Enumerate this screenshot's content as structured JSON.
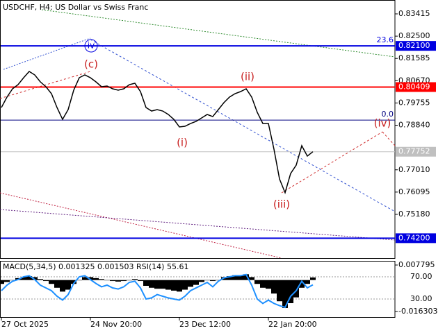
{
  "chart_data": [
    {
      "type": "line",
      "title": "USDCHF, H4:  US Dollar vs Swiss Franc",
      "color": "#000000",
      "categories": [
        "27 Oct 2025",
        null,
        null,
        null,
        null,
        null,
        null,
        null,
        null,
        null,
        null,
        null,
        null,
        null,
        null,
        null,
        "24 Nov 20:00",
        null,
        null,
        null,
        null,
        null,
        null,
        null,
        null,
        null,
        null,
        null,
        null,
        null,
        null,
        null,
        "23 Dec 12:00",
        null,
        null,
        null,
        null,
        null,
        null,
        null,
        null,
        null,
        null,
        null,
        null,
        null,
        null,
        null,
        "22 Jan 20:00",
        null,
        null,
        null,
        null,
        null,
        null,
        null,
        null
      ],
      "values": [
        0.79568,
        0.79995,
        0.80337,
        0.80508,
        0.80793,
        0.8105,
        0.80907,
        0.80622,
        0.80423,
        0.80138,
        0.79568,
        0.79083,
        0.79482,
        0.8028,
        0.80793,
        0.80907,
        0.80793,
        0.80622,
        0.80423,
        0.80451,
        0.80337,
        0.8028,
        0.80337,
        0.80508,
        0.80565,
        0.80223,
        0.79568,
        0.79425,
        0.79482,
        0.79425,
        0.79283,
        0.79083,
        0.7877,
        0.78798,
        0.78912,
        0.78998,
        0.7914,
        0.79283,
        0.79197,
        0.79482,
        0.79767,
        0.79995,
        0.80138,
        0.80223,
        0.80337,
        0.79995,
        0.79368,
        0.78912,
        0.78912,
        0.77858,
        0.76633,
        0.7607,
        0.7686,
        0.77202,
        0.78,
        0.77573,
        0.77752
      ],
      "ylim": [
        0.73384,
        0.83985
      ],
      "yticks": [
        {
          "value": 0.83415,
          "label": "0.83415"
        },
        {
          "value": 0.825,
          "label": "0.82500"
        },
        {
          "value": 0.81585,
          "label": "0.81585"
        },
        {
          "value": 0.8067,
          "label": "0.80670"
        },
        {
          "value": 0.79755,
          "label": "0.79755"
        },
        {
          "value": 0.7884,
          "label": "0.78840"
        },
        {
          "value": 0.7701,
          "label": "0.77010"
        },
        {
          "value": 0.76095,
          "label": "0.76095"
        },
        {
          "value": 0.7518,
          "label": "0.75180"
        }
      ],
      "levels": [
        {
          "value": 0.821,
          "label": "0.82100",
          "color": "#0000e0",
          "fib": "23.6"
        },
        {
          "value": 0.80409,
          "label": "0.80409",
          "color": "#ff0000"
        },
        {
          "value": 0.7905,
          "color": "#000080",
          "fib": "0.0"
        },
        {
          "value": 0.77752,
          "label": "0.77752",
          "color": "#c0c0c0"
        },
        {
          "value": 0.742,
          "label": "0.74200",
          "color": "#0000e0"
        }
      ],
      "annotations": [
        "iv",
        "(c)",
        "(ii)",
        "(i)",
        "(iii)",
        "(iv)"
      ]
    },
    {
      "type": "bar",
      "title": "MACD(5,34,5) 0.001325 0.001503 RSI(14) 55.61",
      "series": [
        {
          "color": "#000000",
          "values": [
            -0.002,
            -0.001,
            0.0,
            0.001,
            0.0015,
            0.002,
            0.0015,
            0.0005,
            -0.0005,
            -0.002,
            -0.004,
            -0.006,
            -0.005,
            -0.002,
            0.0,
            0.0015,
            0.0015,
            0.001,
            0.0005,
            0.0,
            -0.0005,
            -0.0008,
            -0.0005,
            0.0,
            0.0005,
            -0.0005,
            -0.003,
            -0.004,
            -0.0045,
            -0.0045,
            -0.005,
            -0.0055,
            -0.006,
            -0.005,
            -0.0035,
            -0.0025,
            -0.001,
            0.0,
            -0.0005,
            0.0,
            0.0015,
            0.002,
            0.0025,
            0.0025,
            0.003,
            0.0015,
            -0.002,
            -0.004,
            -0.0045,
            -0.007,
            -0.011,
            -0.0145,
            -0.012,
            -0.009,
            -0.004,
            -0.002,
            0.001325
          ]
        },
        {
          "color": "#1e90ff",
          "axis": "y2",
          "values": [
            45,
            55,
            62,
            65,
            70,
            72,
            65,
            55,
            50,
            45,
            35,
            28,
            38,
            58,
            70,
            72,
            65,
            58,
            52,
            55,
            50,
            48,
            52,
            60,
            62,
            50,
            30,
            32,
            38,
            35,
            32,
            30,
            28,
            35,
            45,
            50,
            55,
            60,
            52,
            62,
            68,
            70,
            72,
            72,
            74,
            55,
            30,
            22,
            28,
            22,
            18,
            15,
            35,
            45,
            62,
            50,
            55.61
          ]
        }
      ],
      "ylim": [
        -0.0192,
        0.0096
      ],
      "yticks": [
        0.007795,
        -0.016303
      ],
      "y2lim": [
        -2.5,
        97.5
      ],
      "y2ticks": [
        {
          "value": 70,
          "label": "70.00"
        },
        {
          "value": 30,
          "label": "30.00"
        }
      ]
    }
  ]
}
